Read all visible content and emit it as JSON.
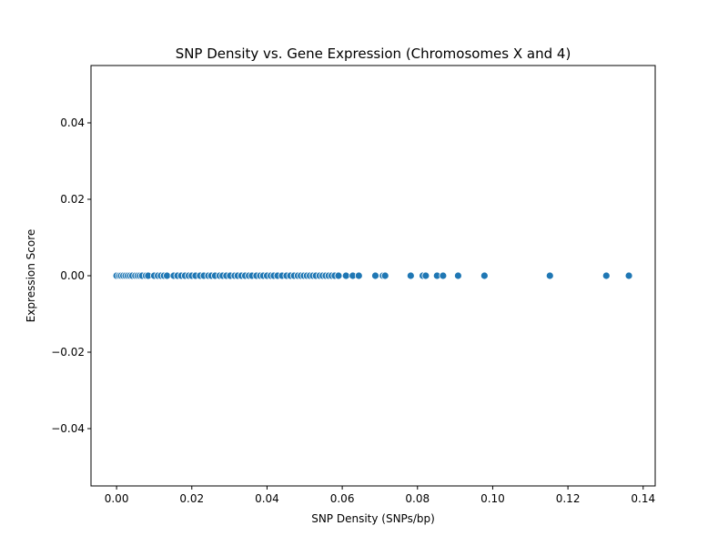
{
  "chart_data": {
    "type": "scatter",
    "title": "SNP Density vs. Gene Expression (Chromosomes X and 4)",
    "xlabel": "SNP Density (SNPs/bp)",
    "ylabel": "Expression Score",
    "xlim": [
      -0.0068,
      0.1432
    ],
    "ylim": [
      -0.055,
      0.055
    ],
    "xticks": [
      0.0,
      0.02,
      0.04,
      0.06,
      0.08,
      0.1,
      0.12,
      0.14
    ],
    "xtick_labels": [
      "0.00",
      "0.02",
      "0.04",
      "0.06",
      "0.08",
      "0.10",
      "0.12",
      "0.14"
    ],
    "yticks": [
      -0.04,
      -0.02,
      0.0,
      0.02,
      0.04
    ],
    "ytick_labels": [
      "−0.04",
      "−0.02",
      "0.00",
      "0.02",
      "0.04"
    ],
    "grid": false,
    "marker_color": "#1f77b4",
    "marker_edge_color": "#ffffff",
    "points": {
      "x": [
        0.0,
        0.0007,
        0.0012,
        0.0018,
        0.0024,
        0.003,
        0.0036,
        0.0042,
        0.005,
        0.0056,
        0.0062,
        0.0068,
        0.0078,
        0.0084,
        0.01,
        0.011,
        0.0118,
        0.0126,
        0.0134,
        0.0152,
        0.0162,
        0.0172,
        0.0182,
        0.0192,
        0.02,
        0.021,
        0.0222,
        0.0232,
        0.0244,
        0.0252,
        0.0262,
        0.0274,
        0.0282,
        0.0292,
        0.0302,
        0.0314,
        0.0322,
        0.0332,
        0.0342,
        0.0352,
        0.036,
        0.0372,
        0.0382,
        0.039,
        0.04,
        0.041,
        0.0418,
        0.0428,
        0.044,
        0.0452,
        0.0462,
        0.0472,
        0.0482,
        0.049,
        0.0498,
        0.0506,
        0.0514,
        0.0522,
        0.053,
        0.054,
        0.0548,
        0.0556,
        0.0564,
        0.0572,
        0.058,
        0.059,
        0.061,
        0.0628,
        0.0644,
        0.0688,
        0.0708,
        0.0714,
        0.0782,
        0.0814,
        0.0822,
        0.0852,
        0.0868,
        0.0908,
        0.0978,
        0.1152,
        0.1302,
        0.1362
      ],
      "y": [
        0,
        0,
        0,
        0,
        0,
        0,
        0,
        0,
        0,
        0,
        0,
        0,
        0,
        0,
        0,
        0,
        0,
        0,
        0,
        0,
        0,
        0,
        0,
        0,
        0,
        0,
        0,
        0,
        0,
        0,
        0,
        0,
        0,
        0,
        0,
        0,
        0,
        0,
        0,
        0,
        0,
        0,
        0,
        0,
        0,
        0,
        0,
        0,
        0,
        0,
        0,
        0,
        0,
        0,
        0,
        0,
        0,
        0,
        0,
        0,
        0,
        0,
        0,
        0,
        0,
        0,
        0,
        0,
        0,
        0,
        0,
        0,
        0,
        0,
        0,
        0,
        0,
        0,
        0,
        0,
        0,
        0
      ]
    }
  }
}
